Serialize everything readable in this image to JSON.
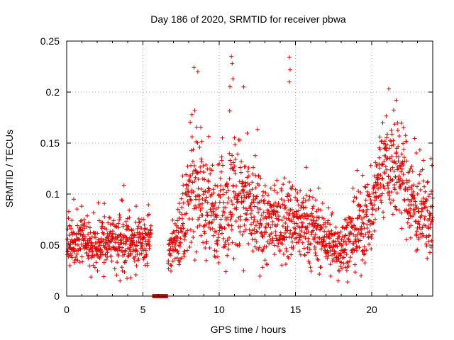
{
  "chart_data": {
    "type": "scatter",
    "title": "Day 186 of 2020, SRMTID for receiver pbwa",
    "xlabel": "GPS time / hours",
    "ylabel": "SRMTID / TECUs",
    "xlim": [
      0,
      24
    ],
    "ylim": [
      0,
      0.25
    ],
    "x_ticks": [
      0,
      5,
      10,
      15,
      20
    ],
    "y_ticks": [
      0,
      0.05,
      0.1,
      0.15,
      0.2,
      0.25
    ],
    "x_tick_labels": [
      "0",
      "5",
      "10",
      "15",
      "20"
    ],
    "y_tick_labels": [
      "0",
      "0.05",
      "0.1",
      "0.15",
      "0.2",
      "0.25"
    ],
    "grid": true,
    "marker": "+",
    "series": [
      {
        "name": "SRMTID",
        "color": "#e00000",
        "approx_profile_x": [
          0,
          1,
          2,
          3,
          4,
          5,
          5.6,
          6.7,
          7.5,
          8,
          8.5,
          9,
          10,
          11,
          12,
          13,
          14,
          15,
          16,
          17,
          17.5,
          18,
          19,
          20,
          20.5,
          21,
          22,
          23,
          24
        ],
        "approx_profile_y": [
          0.05,
          0.055,
          0.05,
          0.055,
          0.05,
          0.055,
          0.06,
          0.045,
          0.06,
          0.09,
          0.12,
          0.09,
          0.08,
          0.1,
          0.085,
          0.07,
          0.07,
          0.075,
          0.065,
          0.055,
          0.045,
          0.05,
          0.06,
          0.08,
          0.12,
          0.13,
          0.12,
          0.08,
          0.075
        ],
        "approx_spread": [
          0.015,
          0.015,
          0.015,
          0.015,
          0.015,
          0.015,
          0.015,
          0.015,
          0.02,
          0.03,
          0.04,
          0.03,
          0.03,
          0.04,
          0.03,
          0.025,
          0.025,
          0.025,
          0.02,
          0.018,
          0.015,
          0.018,
          0.02,
          0.025,
          0.025,
          0.03,
          0.03,
          0.025,
          0.025
        ],
        "notable_points": [
          {
            "x": 8.6,
            "y": 0.22
          },
          {
            "x": 10.8,
            "y": 0.235
          },
          {
            "x": 10.85,
            "y": 0.228
          },
          {
            "x": 10.9,
            "y": 0.213
          },
          {
            "x": 11.6,
            "y": 0.205
          },
          {
            "x": 14.6,
            "y": 0.234
          },
          {
            "x": 14.65,
            "y": 0.222
          },
          {
            "x": 14.6,
            "y": 0.21
          },
          {
            "x": 21.6,
            "y": 0.192
          },
          {
            "x": 11.6,
            "y": 0.025
          },
          {
            "x": 17.8,
            "y": 0.015
          },
          {
            "x": 3.5,
            "y": 0.015
          },
          {
            "x": 4.2,
            "y": 0.018
          }
        ]
      },
      {
        "name": "gap markers",
        "color": "#e00000",
        "marker": "square",
        "x": [
          5.75,
          5.9,
          6.05,
          6.2,
          6.35,
          6.5
        ],
        "y": [
          0,
          0,
          0,
          0,
          0,
          0
        ]
      }
    ]
  }
}
